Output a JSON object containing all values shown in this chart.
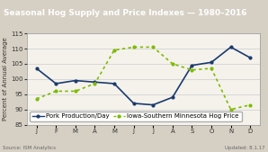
{
  "title": "Seasonal Hog Supply and Price Indexes — 1980–2016",
  "ylabel": "Percent of Annual Average",
  "source_left": "Source: ISM Analytics",
  "source_right": "Updated: 8.1.17",
  "months": [
    "J",
    "F",
    "M",
    "A",
    "M",
    "J",
    "J",
    "A",
    "S",
    "O",
    "N",
    "D"
  ],
  "pork_production": [
    103.5,
    98.5,
    99.5,
    99.0,
    98.5,
    92.0,
    91.5,
    94.0,
    104.5,
    105.5,
    110.5,
    107.0
  ],
  "hog_price": [
    93.5,
    96.0,
    96.0,
    98.5,
    109.5,
    110.5,
    110.5,
    105.0,
    103.0,
    103.5,
    90.0,
    91.5
  ],
  "ylim": [
    85,
    115
  ],
  "yticks": [
    85,
    90,
    95,
    100,
    105,
    110,
    115
  ],
  "title_bg_color": "#1a3a6e",
  "title_text_color": "#ffffff",
  "fig_bg_color": "#d6d0c4",
  "plot_bg_color": "#f5f2ec",
  "title_fontsize": 6.5,
  "axis_label_fontsize": 5.0,
  "tick_fontsize": 5.0,
  "legend_fontsize": 5.0,
  "source_fontsize": 4.0,
  "pork_color": "#1a3a6e",
  "price_color": "#7cbb00",
  "grid_color": "#cccccc",
  "border_color": "#999999"
}
